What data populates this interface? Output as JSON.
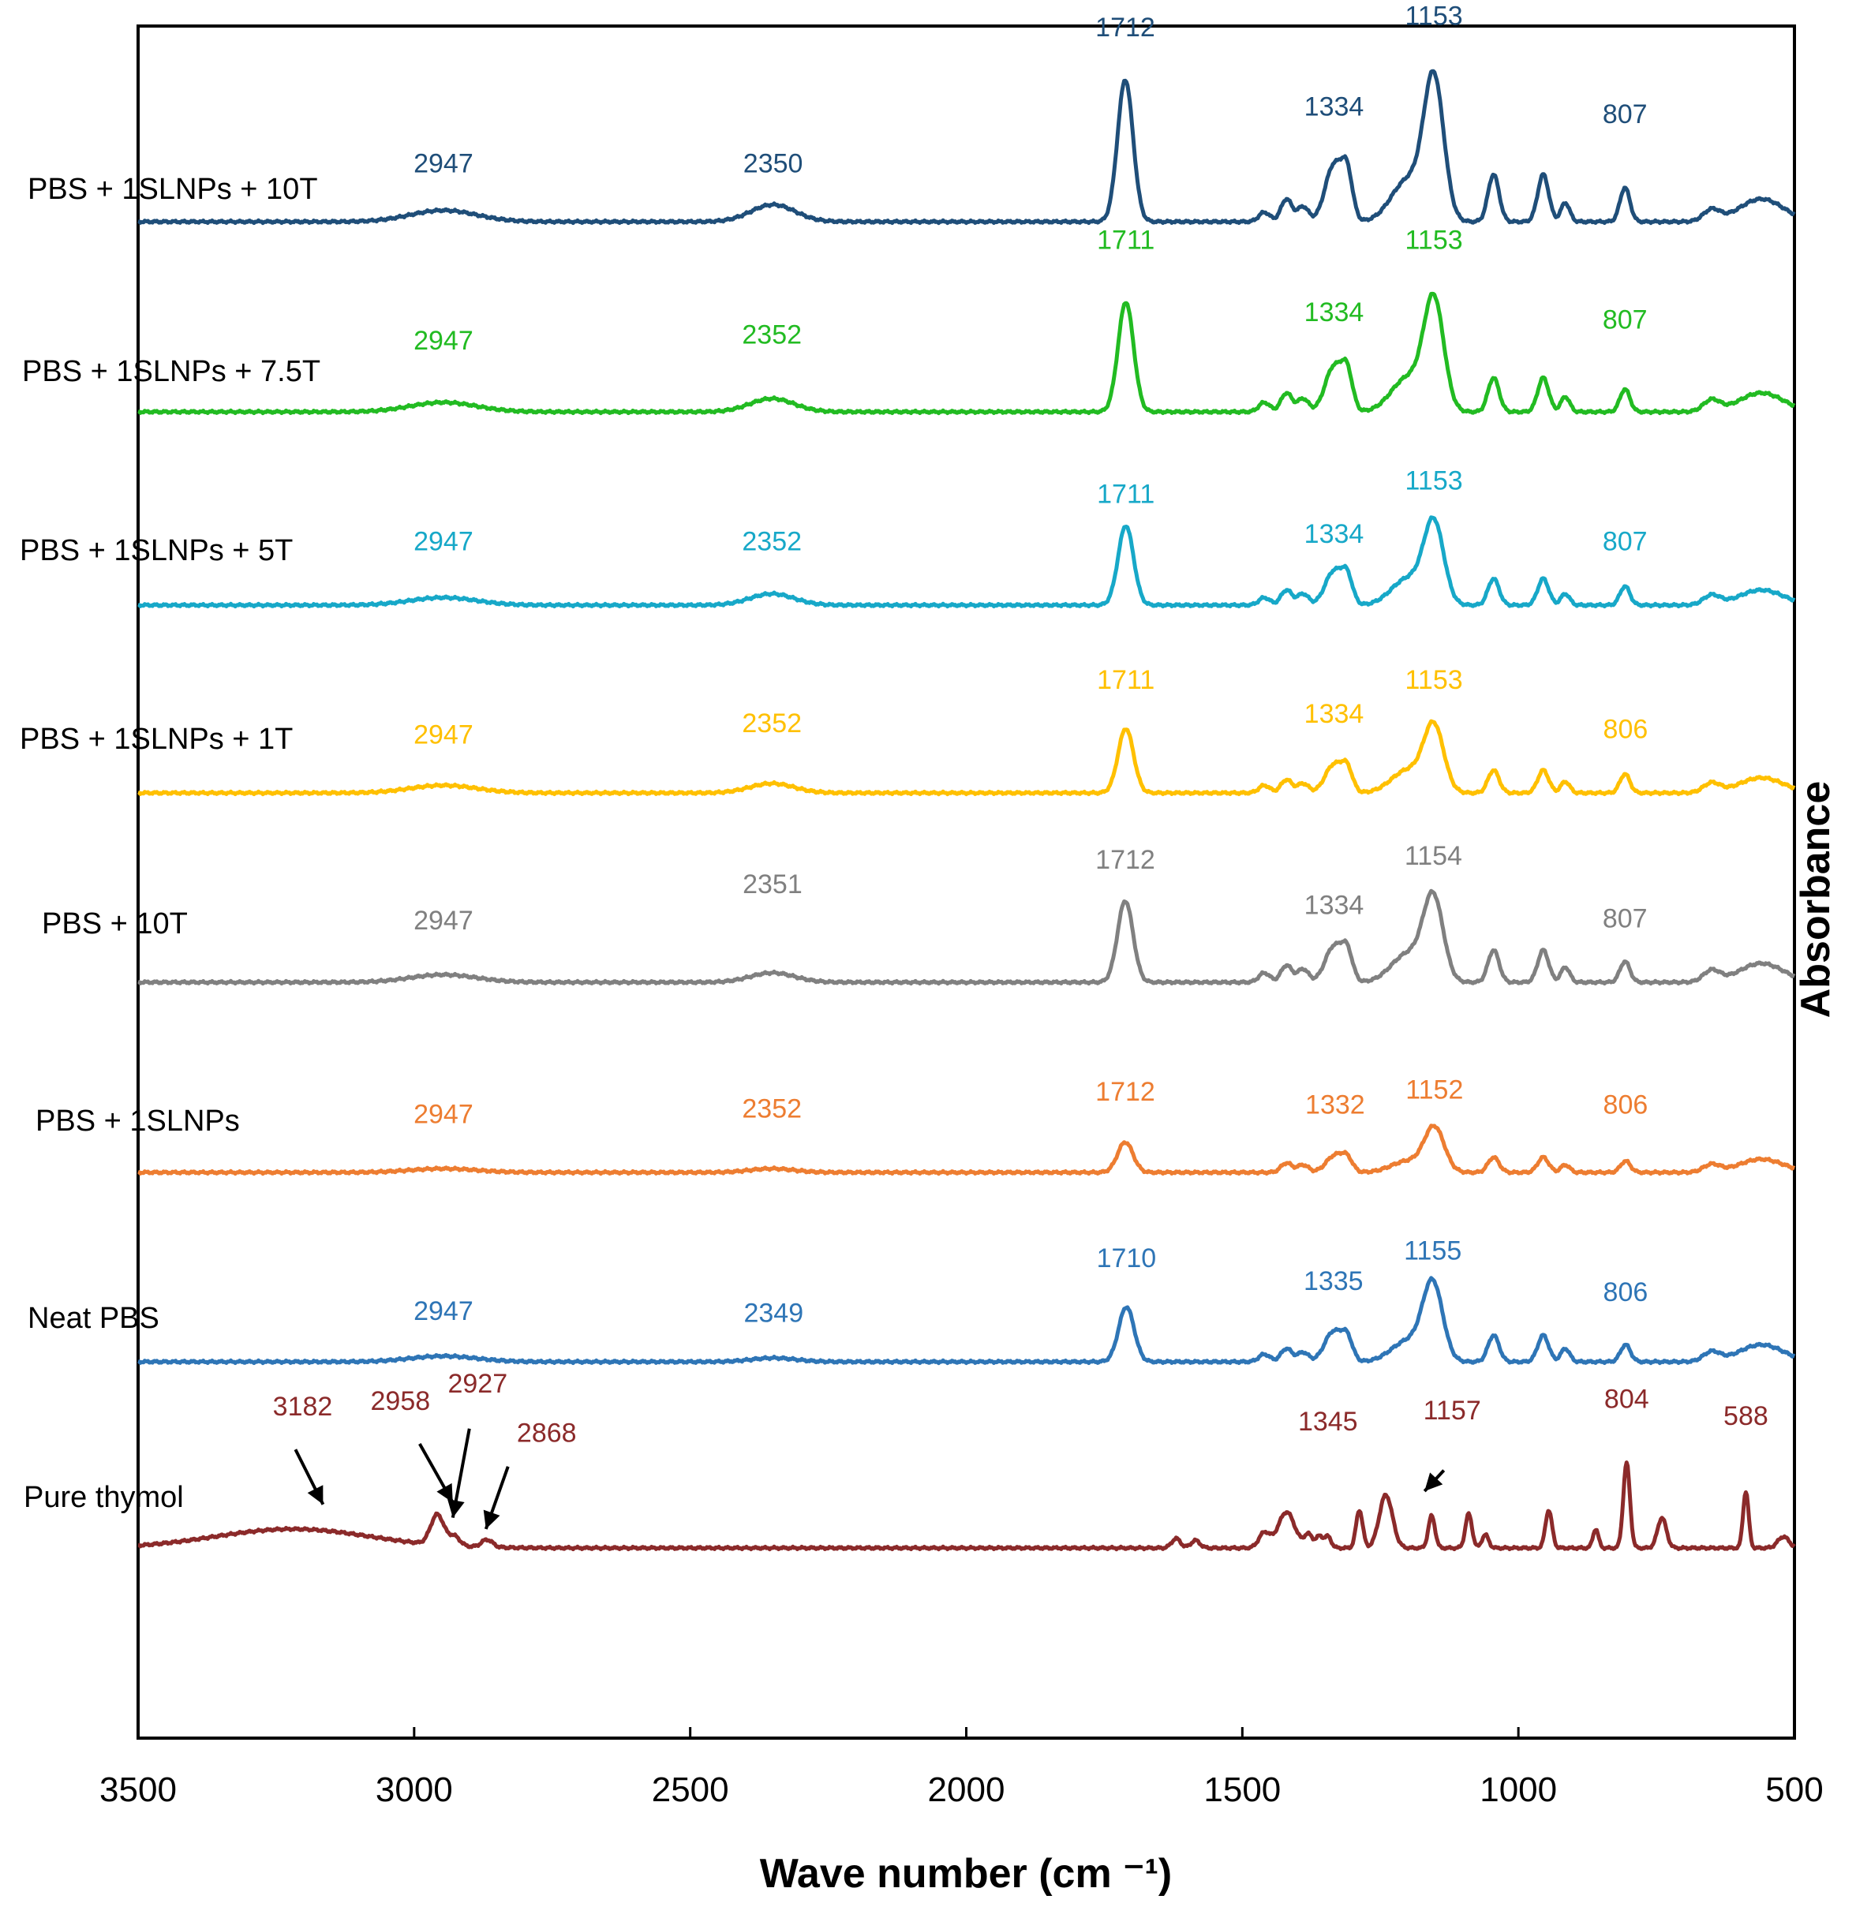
{
  "chart_data": {
    "type": "line",
    "xlabel": "Wave number (cm ⁻¹)",
    "ylabel": "Absorbance",
    "xlim": [
      3500,
      500
    ],
    "x_ticks": [
      "3500",
      "3000",
      "2500",
      "2000",
      "1500",
      "1000",
      "500"
    ],
    "x_tick_values": [
      3500,
      3000,
      2500,
      2000,
      1500,
      1000,
      500
    ],
    "series": [
      {
        "name": "PBS + 1SLNPs + 10T",
        "color": "#1f4e79",
        "offset": 7.0,
        "peaks": [
          {
            "x": 2947,
            "h": 0.06,
            "w": 60
          },
          {
            "x": 2350,
            "h": 0.09,
            "w": 40
          },
          {
            "x": 1712,
            "h": 0.75,
            "w": 14
          },
          {
            "x": 1460,
            "h": 0.05,
            "w": 10
          },
          {
            "x": 1420,
            "h": 0.12,
            "w": 10
          },
          {
            "x": 1390,
            "h": 0.08,
            "w": 10
          },
          {
            "x": 1334,
            "h": 0.3,
            "w": 16
          },
          {
            "x": 1310,
            "h": 0.22,
            "w": 10
          },
          {
            "x": 1200,
            "h": 0.22,
            "w": 30
          },
          {
            "x": 1153,
            "h": 0.73,
            "w": 18
          },
          {
            "x": 1045,
            "h": 0.25,
            "w": 10
          },
          {
            "x": 955,
            "h": 0.25,
            "w": 10
          },
          {
            "x": 915,
            "h": 0.1,
            "w": 8
          },
          {
            "x": 807,
            "h": 0.18,
            "w": 9
          },
          {
            "x": 650,
            "h": 0.06,
            "w": 15
          },
          {
            "x": 560,
            "h": 0.12,
            "w": 40
          }
        ],
        "labels": [
          {
            "text": "2947",
            "x": 2947,
            "dy": 0.26
          },
          {
            "text": "2350",
            "x": 2350,
            "dy": 0.26
          },
          {
            "text": "1712",
            "x": 1712,
            "dy": 0.98
          },
          {
            "text": "1334",
            "x": 1334,
            "dy": 0.56
          },
          {
            "text": "1153",
            "x": 1153,
            "dy": 1.04
          },
          {
            "text": "807",
            "x": 807,
            "dy": 0.52
          }
        ]
      },
      {
        "name": "PBS + 1SLNPs + 7.5T",
        "color": "#22bb22",
        "offset": 6.0,
        "peaks": [
          {
            "x": 2947,
            "h": 0.05,
            "w": 60
          },
          {
            "x": 2352,
            "h": 0.07,
            "w": 40
          },
          {
            "x": 1711,
            "h": 0.58,
            "w": 14
          },
          {
            "x": 1460,
            "h": 0.05,
            "w": 10
          },
          {
            "x": 1420,
            "h": 0.1,
            "w": 10
          },
          {
            "x": 1390,
            "h": 0.07,
            "w": 10
          },
          {
            "x": 1334,
            "h": 0.24,
            "w": 16
          },
          {
            "x": 1310,
            "h": 0.18,
            "w": 10
          },
          {
            "x": 1200,
            "h": 0.18,
            "w": 30
          },
          {
            "x": 1153,
            "h": 0.57,
            "w": 18
          },
          {
            "x": 1045,
            "h": 0.18,
            "w": 10
          },
          {
            "x": 955,
            "h": 0.18,
            "w": 10
          },
          {
            "x": 915,
            "h": 0.08,
            "w": 8
          },
          {
            "x": 807,
            "h": 0.12,
            "w": 9
          },
          {
            "x": 650,
            "h": 0.06,
            "w": 15
          },
          {
            "x": 560,
            "h": 0.1,
            "w": 40
          }
        ],
        "labels": [
          {
            "text": "2947",
            "x": 2947,
            "dy": 0.33
          },
          {
            "text": "2352",
            "x": 2352,
            "dy": 0.36
          },
          {
            "text": "1711",
            "x": 1711,
            "dy": 0.86
          },
          {
            "text": "1334",
            "x": 1334,
            "dy": 0.48
          },
          {
            "text": "1153",
            "x": 1153,
            "dy": 0.86
          },
          {
            "text": "807",
            "x": 807,
            "dy": 0.44
          }
        ]
      },
      {
        "name": "PBS + 1SLNPs + 5T",
        "color": "#17a8c8",
        "offset": 5.0,
        "peaks": [
          {
            "x": 2947,
            "h": 0.04,
            "w": 60
          },
          {
            "x": 2352,
            "h": 0.06,
            "w": 40
          },
          {
            "x": 1711,
            "h": 0.42,
            "w": 14
          },
          {
            "x": 1460,
            "h": 0.04,
            "w": 10
          },
          {
            "x": 1420,
            "h": 0.08,
            "w": 10
          },
          {
            "x": 1390,
            "h": 0.06,
            "w": 10
          },
          {
            "x": 1334,
            "h": 0.18,
            "w": 16
          },
          {
            "x": 1310,
            "h": 0.13,
            "w": 10
          },
          {
            "x": 1200,
            "h": 0.14,
            "w": 30
          },
          {
            "x": 1153,
            "h": 0.42,
            "w": 18
          },
          {
            "x": 1045,
            "h": 0.14,
            "w": 10
          },
          {
            "x": 955,
            "h": 0.14,
            "w": 10
          },
          {
            "x": 915,
            "h": 0.06,
            "w": 8
          },
          {
            "x": 807,
            "h": 0.1,
            "w": 9
          },
          {
            "x": 650,
            "h": 0.05,
            "w": 15
          },
          {
            "x": 560,
            "h": 0.08,
            "w": 40
          }
        ],
        "labels": [
          {
            "text": "2947",
            "x": 2947,
            "dy": 0.29
          },
          {
            "text": "2352",
            "x": 2352,
            "dy": 0.29
          },
          {
            "text": "1711",
            "x": 1711,
            "dy": 0.54
          },
          {
            "text": "1334",
            "x": 1334,
            "dy": 0.33
          },
          {
            "text": "1153",
            "x": 1153,
            "dy": 0.61
          },
          {
            "text": "807",
            "x": 807,
            "dy": 0.29
          }
        ]
      },
      {
        "name": "PBS + 1SLNPs + 1T",
        "color": "#ffc000",
        "offset": 4.0,
        "peaks": [
          {
            "x": 2947,
            "h": 0.04,
            "w": 60
          },
          {
            "x": 2352,
            "h": 0.05,
            "w": 40
          },
          {
            "x": 1711,
            "h": 0.34,
            "w": 14
          },
          {
            "x": 1460,
            "h": 0.04,
            "w": 10
          },
          {
            "x": 1420,
            "h": 0.07,
            "w": 10
          },
          {
            "x": 1390,
            "h": 0.05,
            "w": 10
          },
          {
            "x": 1334,
            "h": 0.15,
            "w": 16
          },
          {
            "x": 1310,
            "h": 0.11,
            "w": 10
          },
          {
            "x": 1200,
            "h": 0.12,
            "w": 30
          },
          {
            "x": 1153,
            "h": 0.34,
            "w": 18
          },
          {
            "x": 1045,
            "h": 0.12,
            "w": 10
          },
          {
            "x": 955,
            "h": 0.12,
            "w": 10
          },
          {
            "x": 915,
            "h": 0.06,
            "w": 8
          },
          {
            "x": 807,
            "h": 0.1,
            "w": 9
          },
          {
            "x": 650,
            "h": 0.05,
            "w": 15
          },
          {
            "x": 560,
            "h": 0.08,
            "w": 40
          }
        ],
        "labels": [
          {
            "text": "2947",
            "x": 2947,
            "dy": 0.26
          },
          {
            "text": "2352",
            "x": 2352,
            "dy": 0.32
          },
          {
            "text": "1711",
            "x": 1711,
            "dy": 0.55
          },
          {
            "text": "1334",
            "x": 1334,
            "dy": 0.37
          },
          {
            "text": "1153",
            "x": 1153,
            "dy": 0.55
          },
          {
            "text": "806",
            "x": 806,
            "dy": 0.29
          }
        ]
      },
      {
        "name": "PBS + 10T",
        "color": "#808080",
        "offset": 3.0,
        "peaks": [
          {
            "x": 2947,
            "h": 0.04,
            "w": 60
          },
          {
            "x": 2351,
            "h": 0.05,
            "w": 40
          },
          {
            "x": 1712,
            "h": 0.43,
            "w": 14
          },
          {
            "x": 1460,
            "h": 0.05,
            "w": 10
          },
          {
            "x": 1420,
            "h": 0.09,
            "w": 10
          },
          {
            "x": 1390,
            "h": 0.07,
            "w": 10
          },
          {
            "x": 1334,
            "h": 0.19,
            "w": 16
          },
          {
            "x": 1310,
            "h": 0.14,
            "w": 10
          },
          {
            "x": 1200,
            "h": 0.15,
            "w": 30
          },
          {
            "x": 1154,
            "h": 0.43,
            "w": 18
          },
          {
            "x": 1045,
            "h": 0.17,
            "w": 10
          },
          {
            "x": 955,
            "h": 0.17,
            "w": 10
          },
          {
            "x": 915,
            "h": 0.08,
            "w": 8
          },
          {
            "x": 807,
            "h": 0.11,
            "w": 9
          },
          {
            "x": 650,
            "h": 0.06,
            "w": 15
          },
          {
            "x": 560,
            "h": 0.1,
            "w": 40
          }
        ],
        "labels": [
          {
            "text": "2947",
            "x": 2947,
            "dy": 0.28
          },
          {
            "text": "2351",
            "x": 2351,
            "dy": 0.47
          },
          {
            "text": "1712",
            "x": 1712,
            "dy": 0.6
          },
          {
            "text": "1334",
            "x": 1334,
            "dy": 0.36
          },
          {
            "text": "1154",
            "x": 1154,
            "dy": 0.62
          },
          {
            "text": "807",
            "x": 807,
            "dy": 0.29
          }
        ]
      },
      {
        "name": "PBS + 1SLNPs",
        "color": "#ed7d31",
        "offset": 2.0,
        "peaks": [
          {
            "x": 2947,
            "h": 0.02,
            "w": 60
          },
          {
            "x": 2352,
            "h": 0.02,
            "w": 40
          },
          {
            "x": 1712,
            "h": 0.16,
            "w": 14
          },
          {
            "x": 1420,
            "h": 0.05,
            "w": 10
          },
          {
            "x": 1390,
            "h": 0.04,
            "w": 10
          },
          {
            "x": 1332,
            "h": 0.09,
            "w": 16
          },
          {
            "x": 1310,
            "h": 0.06,
            "w": 10
          },
          {
            "x": 1200,
            "h": 0.06,
            "w": 30
          },
          {
            "x": 1152,
            "h": 0.23,
            "w": 18
          },
          {
            "x": 1045,
            "h": 0.08,
            "w": 10
          },
          {
            "x": 955,
            "h": 0.08,
            "w": 10
          },
          {
            "x": 915,
            "h": 0.04,
            "w": 8
          },
          {
            "x": 806,
            "h": 0.06,
            "w": 9
          },
          {
            "x": 650,
            "h": 0.04,
            "w": 15
          },
          {
            "x": 560,
            "h": 0.07,
            "w": 40
          }
        ],
        "labels": [
          {
            "text": "2947",
            "x": 2947,
            "dy": 0.26
          },
          {
            "text": "2352",
            "x": 2352,
            "dy": 0.29
          },
          {
            "text": "1712",
            "x": 1712,
            "dy": 0.38
          },
          {
            "text": "1332",
            "x": 1332,
            "dy": 0.31
          },
          {
            "text": "1152",
            "x": 1152,
            "dy": 0.39
          },
          {
            "text": "806",
            "x": 806,
            "dy": 0.31
          }
        ]
      },
      {
        "name": "Neat PBS",
        "color": "#2e75b6",
        "offset": 1.0,
        "peaks": [
          {
            "x": 2947,
            "h": 0.03,
            "w": 60
          },
          {
            "x": 2349,
            "h": 0.02,
            "w": 40
          },
          {
            "x": 1710,
            "h": 0.29,
            "w": 14
          },
          {
            "x": 1460,
            "h": 0.04,
            "w": 10
          },
          {
            "x": 1420,
            "h": 0.07,
            "w": 10
          },
          {
            "x": 1390,
            "h": 0.05,
            "w": 10
          },
          {
            "x": 1335,
            "h": 0.16,
            "w": 16
          },
          {
            "x": 1310,
            "h": 0.11,
            "w": 10
          },
          {
            "x": 1200,
            "h": 0.11,
            "w": 30
          },
          {
            "x": 1155,
            "h": 0.4,
            "w": 18
          },
          {
            "x": 1045,
            "h": 0.14,
            "w": 10
          },
          {
            "x": 955,
            "h": 0.14,
            "w": 10
          },
          {
            "x": 915,
            "h": 0.07,
            "w": 8
          },
          {
            "x": 806,
            "h": 0.09,
            "w": 9
          },
          {
            "x": 650,
            "h": 0.05,
            "w": 15
          },
          {
            "x": 560,
            "h": 0.09,
            "w": 40
          }
        ],
        "labels": [
          {
            "text": "2947",
            "x": 2947,
            "dy": 0.22
          },
          {
            "text": "2349",
            "x": 2349,
            "dy": 0.21
          },
          {
            "text": "1710",
            "x": 1710,
            "dy": 0.5
          },
          {
            "text": "1335",
            "x": 1335,
            "dy": 0.38
          },
          {
            "text": "1155",
            "x": 1155,
            "dy": 0.54
          },
          {
            "text": "806",
            "x": 806,
            "dy": 0.32
          }
        ]
      },
      {
        "name": "Pure thymol",
        "color": "#8b2a2a",
        "offset": 0.0,
        "peaks": [
          {
            "x": 3220,
            "h": 0.1,
            "w": 140
          },
          {
            "x": 2958,
            "h": 0.16,
            "w": 12
          },
          {
            "x": 2927,
            "h": 0.05,
            "w": 10
          },
          {
            "x": 2868,
            "h": 0.04,
            "w": 10
          },
          {
            "x": 1620,
            "h": 0.05,
            "w": 8
          },
          {
            "x": 1585,
            "h": 0.04,
            "w": 8
          },
          {
            "x": 1460,
            "h": 0.08,
            "w": 10
          },
          {
            "x": 1420,
            "h": 0.19,
            "w": 15
          },
          {
            "x": 1380,
            "h": 0.07,
            "w": 8
          },
          {
            "x": 1360,
            "h": 0.06,
            "w": 6
          },
          {
            "x": 1345,
            "h": 0.06,
            "w": 6
          },
          {
            "x": 1288,
            "h": 0.2,
            "w": 6
          },
          {
            "x": 1240,
            "h": 0.28,
            "w": 12
          },
          {
            "x": 1157,
            "h": 0.17,
            "w": 6
          },
          {
            "x": 1090,
            "h": 0.18,
            "w": 6
          },
          {
            "x": 1060,
            "h": 0.07,
            "w": 6
          },
          {
            "x": 945,
            "h": 0.2,
            "w": 6
          },
          {
            "x": 860,
            "h": 0.1,
            "w": 5
          },
          {
            "x": 804,
            "h": 0.45,
            "w": 6
          },
          {
            "x": 740,
            "h": 0.16,
            "w": 8
          },
          {
            "x": 588,
            "h": 0.3,
            "w": 5
          },
          {
            "x": 520,
            "h": 0.06,
            "w": 10
          }
        ],
        "labels": [
          {
            "text": "3182",
            "x": 3202,
            "dy": 0.7
          },
          {
            "text": "2958",
            "x": 3025,
            "dy": 0.73
          },
          {
            "text": "2927",
            "x": 2885,
            "dy": 0.82
          },
          {
            "text": "2868",
            "x": 2760,
            "dy": 0.56
          },
          {
            "text": "1345",
            "x": 1345,
            "dy": 0.62
          },
          {
            "text": "1157",
            "x": 1120,
            "dy": 0.68
          },
          {
            "text": "804",
            "x": 804,
            "dy": 0.74
          },
          {
            "text": "588",
            "x": 588,
            "dy": 0.65
          }
        ],
        "arrows": [
          {
            "x1": 3215,
            "y1": 0.52,
            "x2": 3165,
            "y2": 0.23
          },
          {
            "x1": 2990,
            "y1": 0.55,
            "x2": 2930,
            "y2": 0.24
          },
          {
            "x1": 2900,
            "y1": 0.63,
            "x2": 2930,
            "y2": 0.16
          },
          {
            "x1": 2830,
            "y1": 0.43,
            "x2": 2870,
            "y2": 0.1
          },
          {
            "x1": 1135,
            "y1": 0.41,
            "x2": 1170,
            "y2": 0.3
          }
        ]
      }
    ]
  }
}
